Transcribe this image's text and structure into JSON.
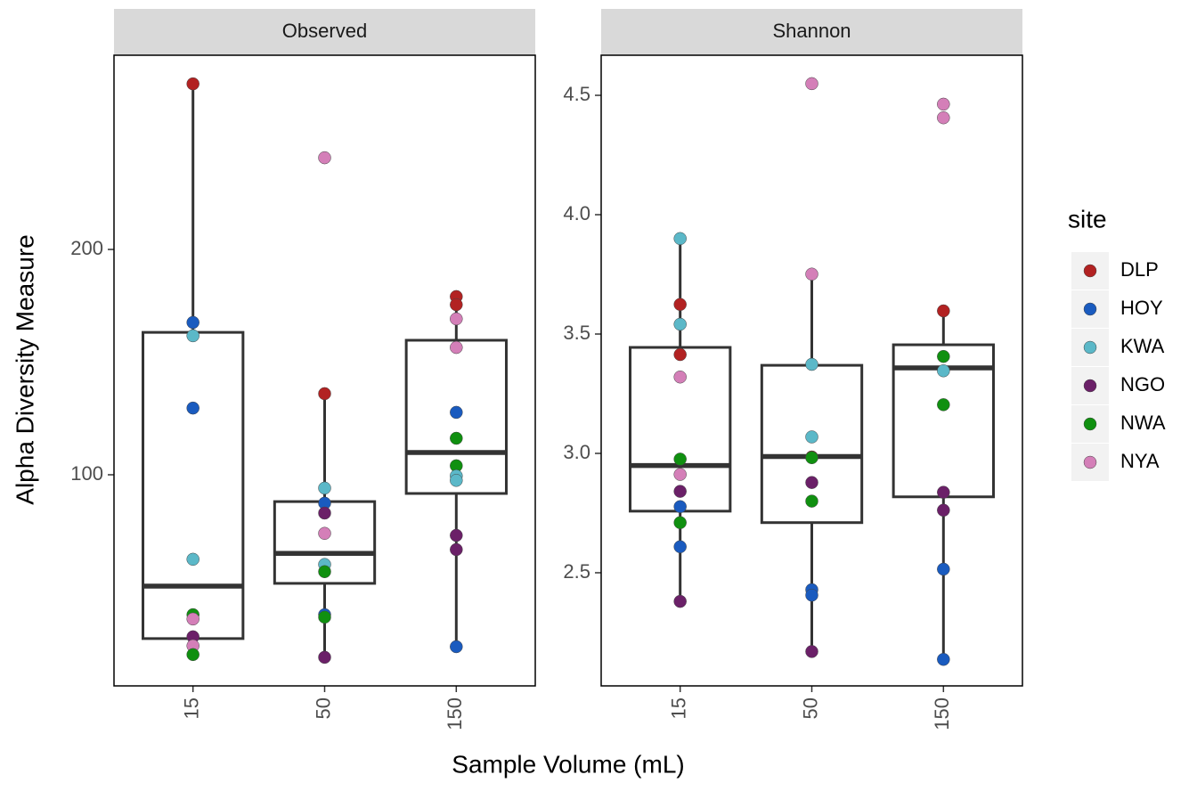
{
  "chart_data": {
    "type": "box",
    "x_label": "Sample Volume (mL)",
    "y_label": "Alpha Diversity Measure",
    "categories": [
      "15",
      "50",
      "150"
    ],
    "legend": {
      "title": "site",
      "series": [
        {
          "name": "DLP",
          "color": "#b22222"
        },
        {
          "name": "HOY",
          "color": "#1a5bbf"
        },
        {
          "name": "KWA",
          "color": "#5bb8c8"
        },
        {
          "name": "NGO",
          "color": "#6b2068"
        },
        {
          "name": "NWA",
          "color": "#109010"
        },
        {
          "name": "NYA",
          "color": "#d47fb8"
        }
      ]
    },
    "facets": [
      {
        "title": "Observed",
        "ylim": [
          6.3,
          286.2
        ],
        "yticks": [
          100,
          200
        ],
        "groups": [
          {
            "lower": 20.2,
            "q1": 27.3,
            "median": 50.6,
            "q3": 163.2,
            "upper": 273.5,
            "points": [
              {
                "site": "DLP",
                "value": 273.5
              },
              {
                "site": "HOY",
                "value": 167.6
              },
              {
                "site": "KWA",
                "value": 161.7
              },
              {
                "site": "HOY",
                "value": 129.6
              },
              {
                "site": "KWA",
                "value": 62.5
              },
              {
                "site": "NWA",
                "value": 37.9
              },
              {
                "site": "NYA",
                "value": 36.0
              },
              {
                "site": "NGO",
                "value": 28.1
              },
              {
                "site": "NYA",
                "value": 24.1
              },
              {
                "site": "NWA",
                "value": 20.2
              }
            ]
          },
          {
            "lower": 19.0,
            "q1": 51.8,
            "median": 65.1,
            "q3": 88.1,
            "upper": 136.0,
            "points": [
              {
                "site": "NYA",
                "value": 240.7
              },
              {
                "site": "DLP",
                "value": 136.0
              },
              {
                "site": "KWA",
                "value": 94.1
              },
              {
                "site": "HOY",
                "value": 87.4
              },
              {
                "site": "NGO",
                "value": 83.0
              },
              {
                "site": "NYA",
                "value": 74.0
              },
              {
                "site": "KWA",
                "value": 60.2
              },
              {
                "site": "NWA",
                "value": 57.0
              },
              {
                "site": "HOY",
                "value": 37.9
              },
              {
                "site": "NWA",
                "value": 36.8
              },
              {
                "site": "NGO",
                "value": 19.0
              }
            ]
          },
          {
            "lower": 23.7,
            "q1": 91.7,
            "median": 109.9,
            "q3": 159.7,
            "upper": 179.1,
            "points": [
              {
                "site": "DLP",
                "value": 179.1
              },
              {
                "site": "DLP",
                "value": 175.5
              },
              {
                "site": "NYA",
                "value": 169.2
              },
              {
                "site": "NYA",
                "value": 156.5
              },
              {
                "site": "HOY",
                "value": 127.7
              },
              {
                "site": "NWA",
                "value": 116.2
              },
              {
                "site": "NWA",
                "value": 104.0
              },
              {
                "site": "KWA",
                "value": 99.5
              },
              {
                "site": "KWA",
                "value": 97.5
              },
              {
                "site": "NGO",
                "value": 73.1
              },
              {
                "site": "NGO",
                "value": 66.8
              },
              {
                "site": "HOY",
                "value": 23.7
              }
            ]
          }
        ]
      },
      {
        "title": "Shannon",
        "ylim": [
          2.026,
          4.668
        ],
        "yticks": [
          2.5,
          {
            "value": 3,
            "label": "3.0"
          },
          3.5,
          {
            "value": 4,
            "label": "4.0"
          },
          4.5
        ],
        "groups": [
          {
            "lower": 2.38,
            "q1": 2.758,
            "median": 2.949,
            "q3": 3.444,
            "upper": 3.9,
            "points": [
              {
                "site": "KWA",
                "value": 3.9
              },
              {
                "site": "DLP",
                "value": 3.624
              },
              {
                "site": "KWA",
                "value": 3.541
              },
              {
                "site": "DLP",
                "value": 3.414
              },
              {
                "site": "NYA",
                "value": 3.32
              },
              {
                "site": "NWA",
                "value": 2.976
              },
              {
                "site": "NYA",
                "value": 2.912
              },
              {
                "site": "NGO",
                "value": 2.841
              },
              {
                "site": "HOY",
                "value": 2.777
              },
              {
                "site": "NWA",
                "value": 2.71
              },
              {
                "site": "HOY",
                "value": 2.609
              },
              {
                "site": "NGO",
                "value": 2.38
              }
            ]
          },
          {
            "lower": 2.17,
            "q1": 2.71,
            "median": 2.987,
            "q3": 3.369,
            "upper": 3.751,
            "points": [
              {
                "site": "NYA",
                "value": 4.549
              },
              {
                "site": "NYA",
                "value": 3.751
              },
              {
                "site": "KWA",
                "value": 3.373
              },
              {
                "site": "KWA",
                "value": 3.069
              },
              {
                "site": "DLP",
                "value": 2.985
              },
              {
                "site": "NWA",
                "value": 2.982
              },
              {
                "site": "NGO",
                "value": 2.878
              },
              {
                "site": "NWA",
                "value": 2.8
              },
              {
                "site": "HOY",
                "value": 2.429
              },
              {
                "site": "HOY",
                "value": 2.406
              },
              {
                "site": "NGO",
                "value": 2.17
              }
            ]
          },
          {
            "lower": 2.137,
            "q1": 2.818,
            "median": 3.358,
            "q3": 3.455,
            "upper": 3.597,
            "points": [
              {
                "site": "NYA",
                "value": 4.463
              },
              {
                "site": "NYA",
                "value": 4.406
              },
              {
                "site": "DLP",
                "value": 3.597
              },
              {
                "site": "NWA",
                "value": 3.406
              },
              {
                "site": "KWA",
                "value": 3.346
              },
              {
                "site": "NWA",
                "value": 3.204
              },
              {
                "site": "NGO",
                "value": 2.837
              },
              {
                "site": "NGO",
                "value": 2.762
              },
              {
                "site": "HOY",
                "value": 2.515
              },
              {
                "site": "HOY",
                "value": 2.137
              }
            ]
          }
        ]
      }
    ]
  }
}
